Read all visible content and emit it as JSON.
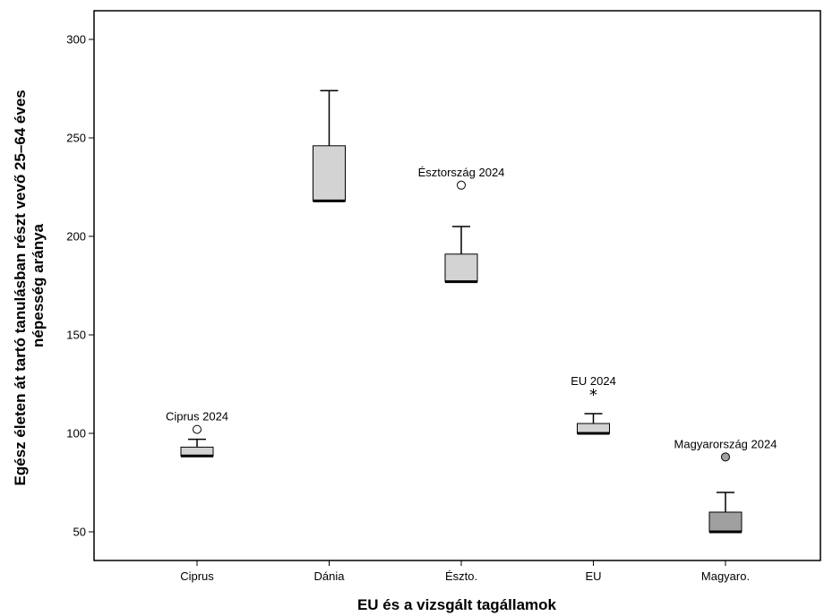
{
  "chart_data": {
    "type": "boxplot",
    "title": "",
    "xlabel": "EU és a vizsgált tagállamok",
    "ylabel_lines": [
      "Egész életen át tartó tanulásban részt vevő 25–64 éves",
      "népesség aránya"
    ],
    "ylim": [
      36,
      313
    ],
    "yticks": [
      50,
      100,
      150,
      200,
      250,
      300
    ],
    "categories": [
      "Ciprus",
      "Dánia",
      "Észto.",
      "EU",
      "Magyaro."
    ],
    "boxes": [
      {
        "category": "Ciprus",
        "q1": 88.5,
        "median": 88.5,
        "q3": 93,
        "whisker_low": 88.5,
        "whisker_high": 97,
        "fill": "#d3d3d3"
      },
      {
        "category": "Dánia",
        "q1": 218,
        "median": 218,
        "q3": 246,
        "whisker_low": 218,
        "whisker_high": 274,
        "fill": "#d3d3d3"
      },
      {
        "category": "Észto.",
        "q1": 177,
        "median": 177,
        "q3": 191,
        "whisker_low": 177,
        "whisker_high": 205,
        "fill": "#d3d3d3"
      },
      {
        "category": "EU",
        "q1": 100,
        "median": 100,
        "q3": 105,
        "whisker_low": 100,
        "whisker_high": 110,
        "fill": "#d3d3d3"
      },
      {
        "category": "Magyaro.",
        "q1": 50,
        "median": 50,
        "q3": 60,
        "whisker_low": 50,
        "whisker_high": 70,
        "fill": "#a0a0a0"
      }
    ],
    "outliers": [
      {
        "category": "Ciprus",
        "value": 102,
        "marker": "circle",
        "label": "Ciprus 2024",
        "fill": "#ffffff"
      },
      {
        "category": "Észto.",
        "value": 226,
        "marker": "circle",
        "label": "Észtország 2024",
        "fill": "#ffffff"
      },
      {
        "category": "EU",
        "value": 120,
        "marker": "star",
        "label": "EU 2024",
        "fill": "#000000"
      },
      {
        "category": "Magyaro.",
        "value": 88,
        "marker": "circle",
        "label": "Magyarország 2024",
        "fill": "#a0a0a0"
      }
    ],
    "grid": false,
    "legend": "none"
  }
}
